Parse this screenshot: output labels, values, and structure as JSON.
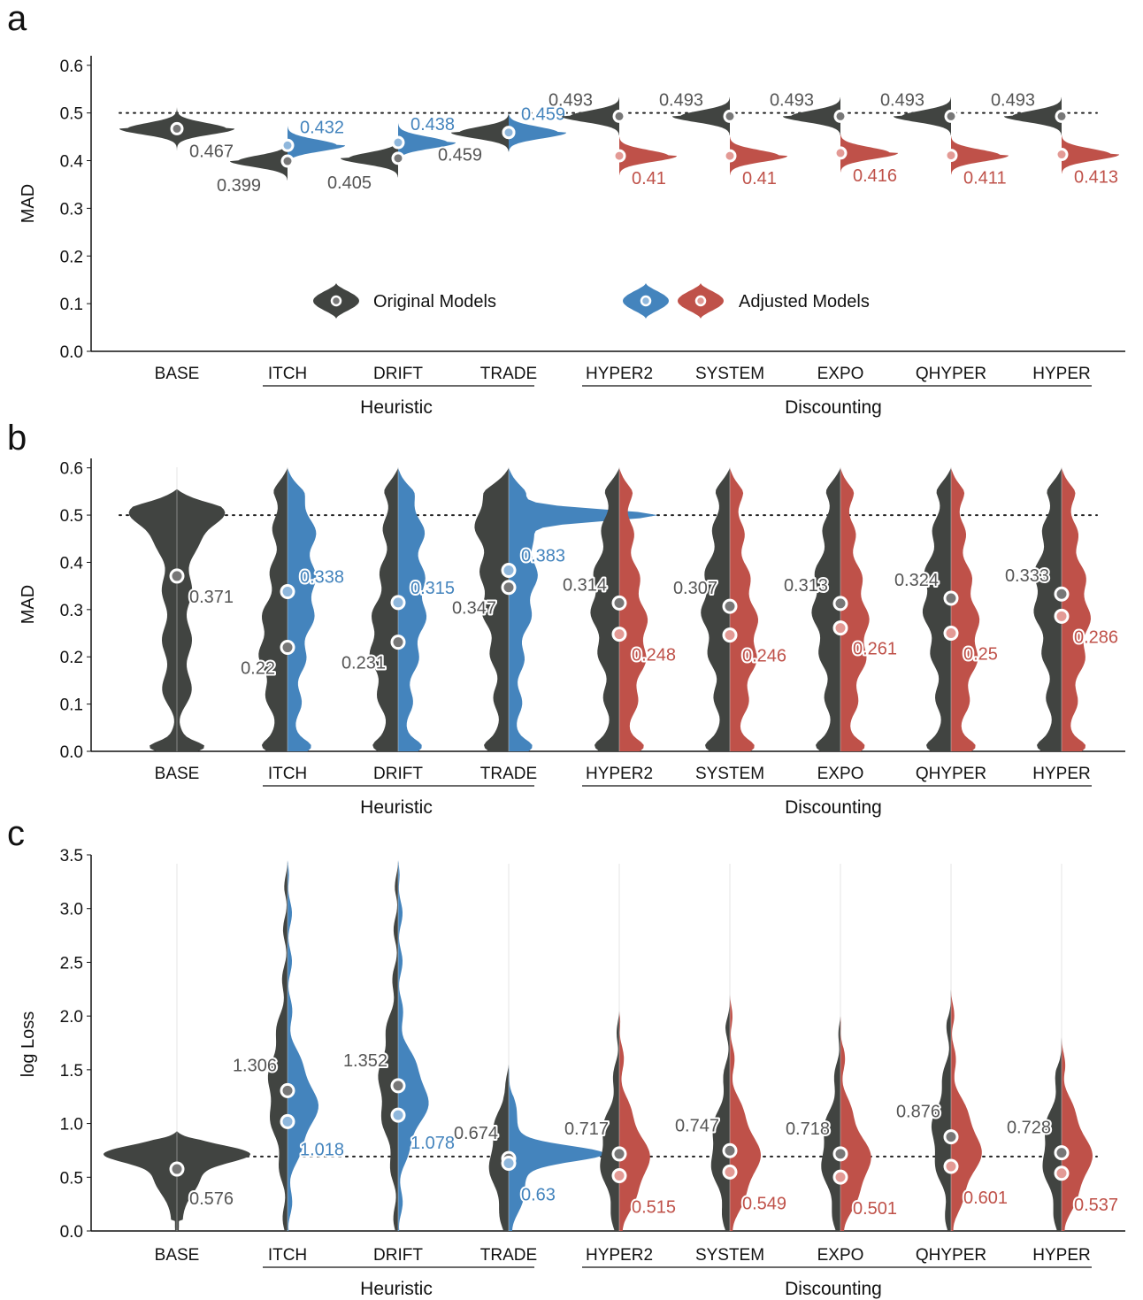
{
  "colors": {
    "original": "#414441",
    "adjusted_heuristic": "#4484bd",
    "adjusted_discounting": "#bf5149",
    "text_original": "#555555"
  },
  "legend": {
    "original": "Original Models",
    "adjusted": "Adjusted Models"
  },
  "groups": {
    "heuristic": "Heuristic",
    "discounting": "Discounting"
  },
  "chart_data": [
    {
      "panel": "a",
      "type": "violin",
      "ylabel": "MAD",
      "ylim": [
        0,
        0.62
      ],
      "yticks": [
        "0.0",
        "0.1",
        "0.2",
        "0.3",
        "0.4",
        "0.5",
        "0.6"
      ],
      "reference_line": 0.5,
      "legend_placement": "inside-bottom-center",
      "categories": [
        "BASE",
        "ITCH",
        "DRIFT",
        "TRADE",
        "HYPER2",
        "SYSTEM",
        "EXPO",
        "QHYPER",
        "HYPER"
      ],
      "original": [
        0.467,
        0.399,
        0.405,
        0.459,
        0.493,
        0.493,
        0.493,
        0.493,
        0.493
      ],
      "adjusted": [
        null,
        0.432,
        0.438,
        0.459,
        0.41,
        0.41,
        0.416,
        0.411,
        0.413
      ],
      "original_labels": [
        "0.467",
        "0.399",
        "0.405",
        "0.459",
        "0.493",
        "0.493",
        "0.493",
        "0.493",
        "0.493"
      ],
      "adjusted_labels": [
        "",
        "0.432",
        "0.438",
        "0.459",
        "0.41",
        "0.41",
        "0.416",
        "0.411",
        "0.413"
      ]
    },
    {
      "panel": "b",
      "type": "violin",
      "ylabel": "MAD",
      "ylim": [
        0,
        0.62
      ],
      "yticks": [
        "0.0",
        "0.1",
        "0.2",
        "0.3",
        "0.4",
        "0.5",
        "0.6"
      ],
      "reference_line": 0.5,
      "categories": [
        "BASE",
        "ITCH",
        "DRIFT",
        "TRADE",
        "HYPER2",
        "SYSTEM",
        "EXPO",
        "QHYPER",
        "HYPER"
      ],
      "original": [
        0.371,
        0.22,
        0.231,
        0.347,
        0.314,
        0.307,
        0.313,
        0.324,
        0.333
      ],
      "adjusted": [
        null,
        0.338,
        0.315,
        0.383,
        0.248,
        0.246,
        0.261,
        0.25,
        0.286
      ],
      "original_labels": [
        "0.371",
        "0.22",
        "0.231",
        "0.347",
        "0.314",
        "0.307",
        "0.313",
        "0.324",
        "0.333"
      ],
      "adjusted_labels": [
        "",
        "0.338",
        "0.315",
        "0.383",
        "0.248",
        "0.246",
        "0.261",
        "0.25",
        "0.286"
      ]
    },
    {
      "panel": "c",
      "type": "violin",
      "ylabel": "log Loss",
      "ylim": [
        0,
        3.5
      ],
      "yticks": [
        "0.0",
        "0.5",
        "1.0",
        "1.5",
        "2.0",
        "2.5",
        "3.0",
        "3.5"
      ],
      "reference_line": 0.693,
      "categories": [
        "BASE",
        "ITCH",
        "DRIFT",
        "TRADE",
        "HYPER2",
        "SYSTEM",
        "EXPO",
        "QHYPER",
        "HYPER"
      ],
      "original": [
        0.576,
        1.306,
        1.352,
        0.674,
        0.717,
        0.747,
        0.718,
        0.876,
        0.728
      ],
      "adjusted": [
        null,
        1.018,
        1.078,
        0.63,
        0.515,
        0.549,
        0.501,
        0.601,
        0.537
      ],
      "original_labels": [
        "0.576",
        "1.306",
        "1.352",
        "0.674",
        "0.717",
        "0.747",
        "0.718",
        "0.876",
        "0.728"
      ],
      "adjusted_labels": [
        "",
        "1.018",
        "1.078",
        "0.63",
        "0.515",
        "0.549",
        "0.501",
        "0.601",
        "0.537"
      ]
    }
  ]
}
